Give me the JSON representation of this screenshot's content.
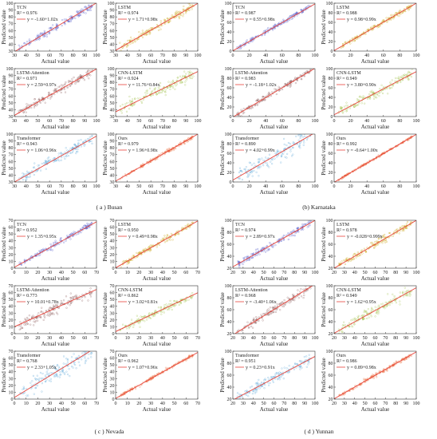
{
  "colors": {
    "fit_line": "#e8453c",
    "TCN": "#4f57c8",
    "LSTM": "#c9a317",
    "LSTM-Attention": "#8a5a5a",
    "CNN-LSTM": "#9fc04a",
    "Transformer": "#5aa6d8",
    "Ours": "#e96b3c"
  },
  "chart_data": [
    {
      "type": "scatter",
      "panel": "a",
      "caption": "( a ) Busan",
      "xlim": [
        30,
        100
      ],
      "ylim": [
        30,
        100
      ],
      "xticks": [
        30,
        40,
        50,
        60,
        70,
        80,
        90,
        100
      ],
      "yticks": [
        30,
        40,
        50,
        60,
        70,
        80,
        90,
        100
      ],
      "xlabel": "Actual value",
      "ylabel": "Predicted value",
      "models": [
        {
          "name": "TCN",
          "r2": "R² = 0.976",
          "equation": "y = -1.60+1.02x",
          "intercept": -1.6,
          "slope": 1.02,
          "spread": 2.5
        },
        {
          "name": "LSTM",
          "r2": "R² = 0.974",
          "equation": "y = 1.71+0.98x",
          "intercept": 1.71,
          "slope": 0.98,
          "spread": 2.7
        },
        {
          "name": "LSTM-Attention",
          "r2": "R² = 0.971",
          "equation": "y = 2.59+0.97x",
          "intercept": 2.59,
          "slope": 0.97,
          "spread": 2.9
        },
        {
          "name": "CNN-LSTM",
          "r2": "R² = 0.924",
          "equation": "y = 11.76+0.84x",
          "intercept": 11.76,
          "slope": 0.84,
          "spread": 4.0
        },
        {
          "name": "Transformer",
          "r2": "R² = 0.943",
          "equation": "y = 1.06+0.96x",
          "intercept": 1.06,
          "slope": 0.96,
          "spread": 3.5
        },
        {
          "name": "Ours",
          "r2": "R² = 0.979",
          "equation": "y = 1.96+0.98x",
          "intercept": 1.96,
          "slope": 0.98,
          "spread": 1.2
        }
      ]
    },
    {
      "type": "scatter",
      "panel": "b",
      "caption": "(b) Karnataka",
      "xlim": [
        0,
        100
      ],
      "ylim": [
        0,
        100
      ],
      "xticks": [
        0,
        20,
        40,
        60,
        80,
        100
      ],
      "yticks": [
        0,
        20,
        40,
        60,
        80,
        100
      ],
      "xlabel": "Actual value",
      "ylabel": "Predicted value",
      "models": [
        {
          "name": "TCN",
          "r2": "R² = 0.987",
          "equation": "y = 0.55+0.98x",
          "intercept": 0.55,
          "slope": 0.98,
          "spread": 2.5
        },
        {
          "name": "LSTM",
          "r2": "R² = 0.988",
          "equation": "y = 0.98+0.99x",
          "intercept": 0.98,
          "slope": 0.99,
          "spread": 2.3
        },
        {
          "name": "LSTM-Attention",
          "r2": "R² = 0.983",
          "equation": "y = -1.18+1.02x",
          "intercept": -1.18,
          "slope": 1.02,
          "spread": 3.0
        },
        {
          "name": "CNN-LSTM",
          "r2": "R² = 0.949",
          "equation": "y = 3.80+0.90x",
          "intercept": 3.8,
          "slope": 0.9,
          "spread": 5.0
        },
        {
          "name": "Transformer",
          "r2": "R² = 0.890",
          "equation": "y = 4.02+0.99x",
          "intercept": 4.02,
          "slope": 0.99,
          "spread": 9.0
        },
        {
          "name": "Ours",
          "r2": "R² = 0.992",
          "equation": "y = -0.64+1.00x",
          "intercept": -0.64,
          "slope": 1.0,
          "spread": 1.0
        }
      ]
    },
    {
      "type": "scatter",
      "panel": "c",
      "caption": "( c ) Nevada",
      "xlim": [
        0,
        70
      ],
      "ylim": [
        0,
        70
      ],
      "xticks": [
        0,
        10,
        20,
        30,
        40,
        50,
        60,
        70
      ],
      "yticks": [
        0,
        10,
        20,
        30,
        40,
        50,
        60,
        70
      ],
      "xlabel": "Actual value",
      "ylabel": "Predicted value",
      "models": [
        {
          "name": "TCN",
          "r2": "R² = 0.952",
          "equation": "y = 1.35+0.95x",
          "intercept": 1.35,
          "slope": 0.95,
          "spread": 2.0
        },
        {
          "name": "LSTM",
          "r2": "R² = 0.950",
          "equation": "y = 0.49+0.98x",
          "intercept": 0.49,
          "slope": 0.98,
          "spread": 2.0
        },
        {
          "name": "LSTM-Attention",
          "r2": "R² = 0.773",
          "equation": "y = 10.01+0.78x",
          "intercept": 10.01,
          "slope": 0.78,
          "spread": 4.0
        },
        {
          "name": "CNN-LSTM",
          "r2": "R² = 0.862",
          "equation": "y = 3.02+0.81x",
          "intercept": 3.02,
          "slope": 0.81,
          "spread": 3.0
        },
        {
          "name": "Transformer",
          "r2": "R² = 0.768",
          "equation": "y = 2.33+1.05x",
          "intercept": 2.33,
          "slope": 1.05,
          "spread": 6.0
        },
        {
          "name": "Ours",
          "r2": "R² = 0.962",
          "equation": "y = 1.07+0.96x",
          "intercept": 1.07,
          "slope": 0.96,
          "spread": 1.0
        }
      ]
    },
    {
      "type": "scatter",
      "panel": "d",
      "caption": "( d ) Yunnan",
      "xlim": [
        20,
        100
      ],
      "ylim": [
        20,
        100
      ],
      "xticks": [
        20,
        30,
        40,
        50,
        60,
        70,
        80,
        90,
        100
      ],
      "yticks": [
        20,
        40,
        60,
        80,
        100
      ],
      "xlabel": "Actual value",
      "ylabel": "Predicted value",
      "models": [
        {
          "name": "TCN",
          "r2": "R² = 0.974",
          "equation": "y = 2.89+0.97x",
          "intercept": 2.89,
          "slope": 0.97,
          "spread": 3.0
        },
        {
          "name": "LSTM",
          "r2": "R² = 0.978",
          "equation": "y = -0.028+0.999x",
          "intercept": -0.028,
          "slope": 0.999,
          "spread": 2.8
        },
        {
          "name": "LSTM-Attention",
          "r2": "R² = 0.968",
          "equation": "y = -3.40+1.06x",
          "intercept": -3.4,
          "slope": 1.06,
          "spread": 3.5
        },
        {
          "name": "CNN-LSTM",
          "r2": "R² = 0.949",
          "equation": "y = 1.62+0.95x",
          "intercept": 1.62,
          "slope": 0.95,
          "spread": 4.2
        },
        {
          "name": "Transformer",
          "r2": "R² = 0.951",
          "equation": "y = 0.23+0.91x",
          "intercept": 0.23,
          "slope": 0.91,
          "spread": 4.5
        },
        {
          "name": "Ours",
          "r2": "R² = 0.986",
          "equation": "y = 0.89+0.98x",
          "intercept": 0.89,
          "slope": 0.98,
          "spread": 1.5
        }
      ]
    }
  ]
}
